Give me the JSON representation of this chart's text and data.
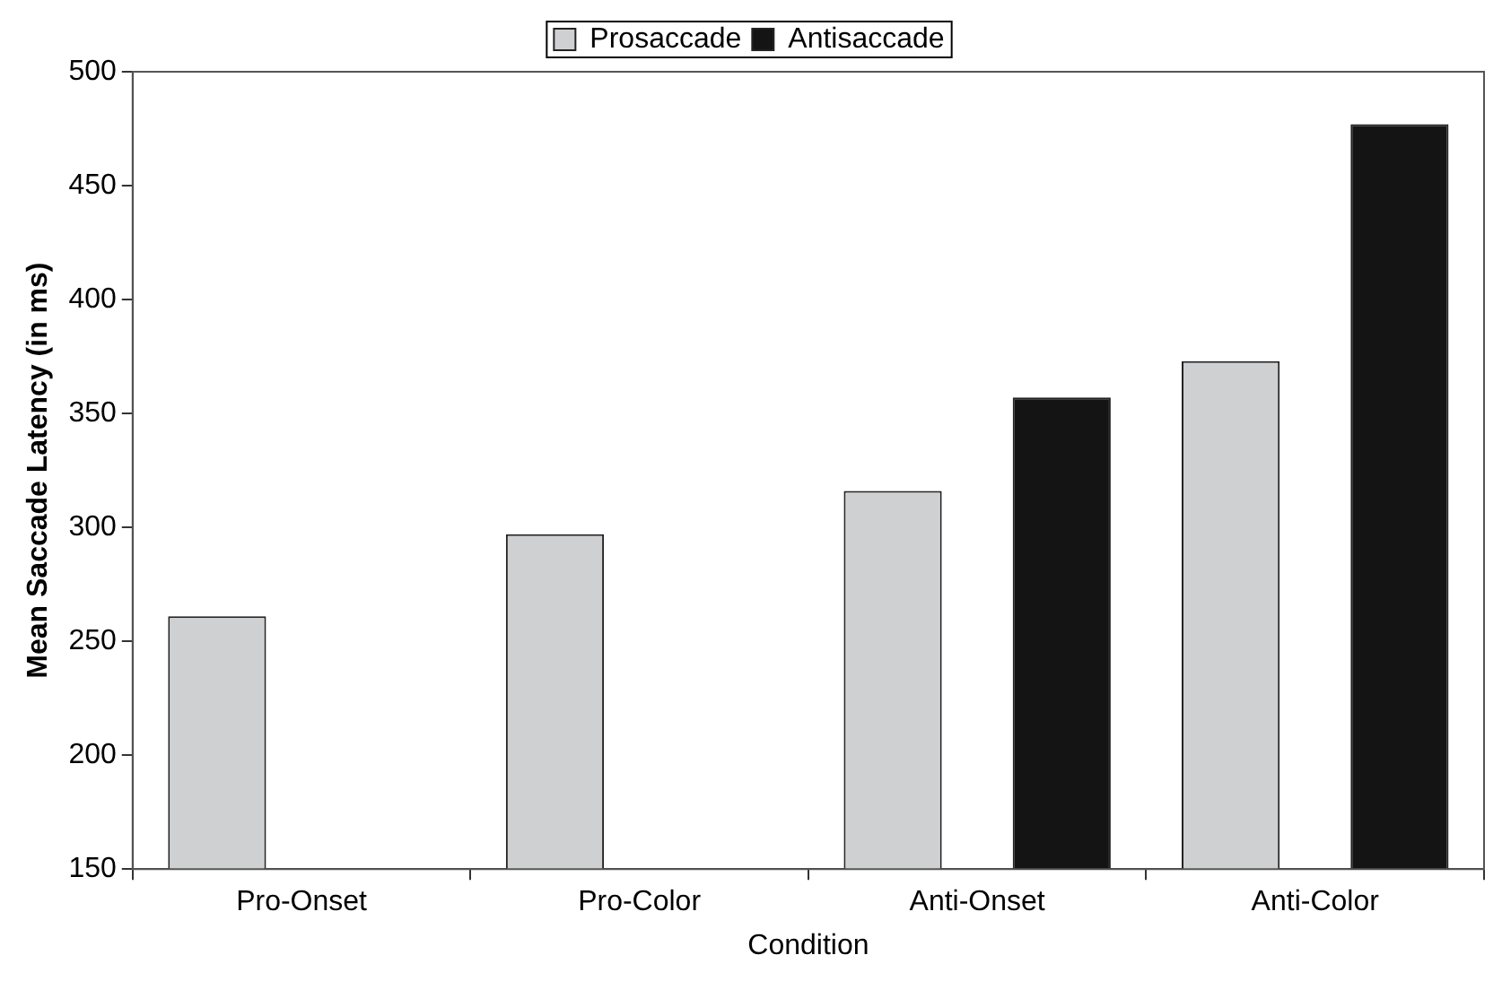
{
  "chart_data": {
    "type": "bar",
    "xlabel": "Condition",
    "ylabel": "Mean Saccade Latency (in ms)",
    "categories": [
      "Pro-Onset",
      "Pro-Color",
      "Anti-Onset",
      "Anti-Color"
    ],
    "series": [
      {
        "name": "Prosaccade",
        "color": "#cfd0d2",
        "values": [
          261,
          297,
          316,
          373
        ]
      },
      {
        "name": "Antisaccade",
        "color": "#141414",
        "values": [
          null,
          null,
          357,
          477
        ]
      }
    ],
    "ylim": [
      150,
      500
    ],
    "yticks": [
      150,
      200,
      250,
      300,
      350,
      400,
      450,
      500
    ],
    "legend": "top"
  }
}
